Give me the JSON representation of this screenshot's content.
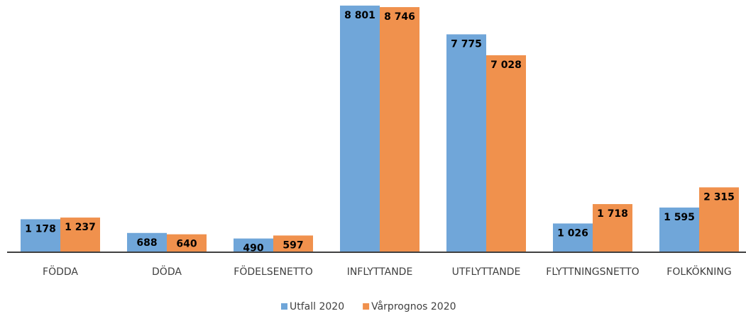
{
  "chart_data": {
    "type": "bar",
    "categories": [
      "FÖDDA",
      "DÖDA",
      "FÖDELSENETTO",
      "INFLYTTANDE",
      "UTFLYTTANDE",
      "FLYTTNINGSNETTO",
      "FOLKÖKNING"
    ],
    "series": [
      {
        "name": "Utfall 2020",
        "color": "#70a6d9",
        "values": [
          1178,
          688,
          490,
          8801,
          7775,
          1026,
          1595
        ],
        "value_labels": [
          "1 178",
          "688",
          "490",
          "8 801",
          "7 775",
          "1 026",
          "1 595"
        ]
      },
      {
        "name": "Vårprognos 2020",
        "color": "#f0914d",
        "values": [
          1237,
          640,
          597,
          8746,
          7028,
          1718,
          2315
        ],
        "value_labels": [
          "1 237",
          "640",
          "597",
          "8 746",
          "7 028",
          "1 718",
          "2 315"
        ]
      }
    ],
    "ylim": [
      0,
      9000
    ],
    "legend": "bottom"
  }
}
